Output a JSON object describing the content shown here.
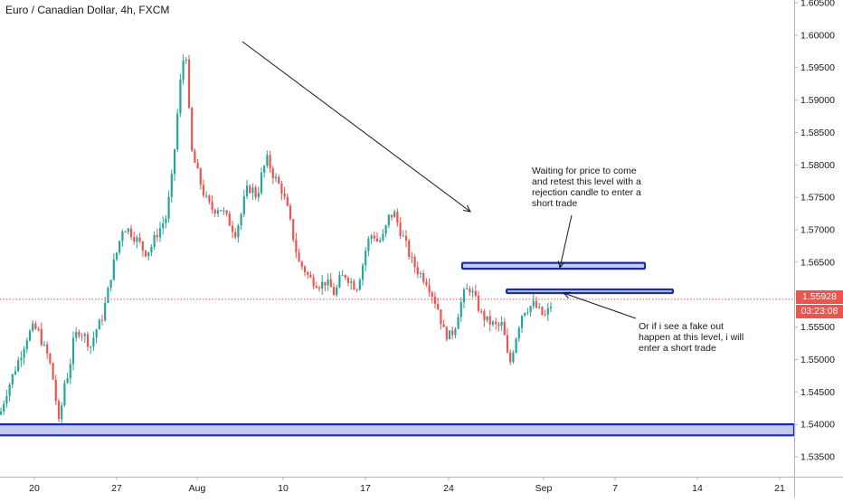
{
  "chart_data": {
    "type": "candlestick",
    "title": "Euro / Canadian Dollar, 4h, FXCM",
    "y_axis": {
      "side": "right",
      "ticks": [
        "1.60500",
        "1.60000",
        "1.59500",
        "1.59000",
        "1.58500",
        "1.58000",
        "1.57500",
        "1.57000",
        "1.56500",
        "1.56000",
        "1.55500",
        "1.55000",
        "1.54500",
        "1.54000",
        "1.53500"
      ],
      "range": [
        1.5325,
        1.6055
      ]
    },
    "x_axis": {
      "ticks": [
        "20",
        "27",
        "Aug",
        "10",
        "17",
        "24",
        "Sep",
        "7",
        "14",
        "21"
      ]
    },
    "grid": false,
    "price_path": [
      [
        0,
        1.5415
      ],
      [
        6,
        1.5445
      ],
      [
        12,
        1.5468
      ],
      [
        18,
        1.549
      ],
      [
        24,
        1.5512
      ],
      [
        30,
        1.5535
      ],
      [
        36,
        1.5548
      ],
      [
        42,
        1.5545
      ],
      [
        48,
        1.552
      ],
      [
        54,
        1.5502
      ],
      [
        60,
        1.546
      ],
      [
        64,
        1.541
      ],
      [
        66,
        1.5392
      ],
      [
        70,
        1.546
      ],
      [
        76,
        1.548
      ],
      [
        82,
        1.5535
      ],
      [
        88,
        1.5545
      ],
      [
        94,
        1.5535
      ],
      [
        100,
        1.552
      ],
      [
        106,
        1.5545
      ],
      [
        112,
        1.556
      ],
      [
        118,
        1.5595
      ],
      [
        124,
        1.564
      ],
      [
        130,
        1.567
      ],
      [
        136,
        1.5705
      ],
      [
        142,
        1.57
      ],
      [
        148,
        1.569
      ],
      [
        154,
        1.568
      ],
      [
        160,
        1.5665
      ],
      [
        166,
        1.567
      ],
      [
        172,
        1.569
      ],
      [
        178,
        1.5705
      ],
      [
        184,
        1.572
      ],
      [
        190,
        1.578
      ],
      [
        194,
        1.584
      ],
      [
        198,
        1.591
      ],
      [
        202,
        1.596
      ],
      [
        206,
        1.597
      ],
      [
        208,
        1.59
      ],
      [
        212,
        1.582
      ],
      [
        218,
        1.579
      ],
      [
        224,
        1.576
      ],
      [
        230,
        1.574
      ],
      [
        236,
        1.573
      ],
      [
        242,
        1.5735
      ],
      [
        248,
        1.5725
      ],
      [
        254,
        1.571
      ],
      [
        260,
        1.5695
      ],
      [
        266,
        1.572
      ],
      [
        272,
        1.576
      ],
      [
        278,
        1.5765
      ],
      [
        284,
        1.575
      ],
      [
        290,
        1.579
      ],
      [
        296,
        1.581
      ],
      [
        300,
        1.579
      ],
      [
        306,
        1.5775
      ],
      [
        312,
        1.576
      ],
      [
        318,
        1.573
      ],
      [
        324,
        1.569
      ],
      [
        330,
        1.565
      ],
      [
        336,
        1.564
      ],
      [
        342,
        1.5625
      ],
      [
        348,
        1.562
      ],
      [
        354,
        1.5615
      ],
      [
        360,
        1.562
      ],
      [
        366,
        1.561
      ],
      [
        370,
        1.56
      ],
      [
        376,
        1.5625
      ],
      [
        382,
        1.563
      ],
      [
        388,
        1.562
      ],
      [
        394,
        1.561
      ],
      [
        400,
        1.564
      ],
      [
        406,
        1.568
      ],
      [
        412,
        1.5695
      ],
      [
        418,
        1.568
      ],
      [
        424,
        1.569
      ],
      [
        430,
        1.572
      ],
      [
        436,
        1.5725
      ],
      [
        442,
        1.57
      ],
      [
        448,
        1.568
      ],
      [
        454,
        1.5655
      ],
      [
        460,
        1.564
      ],
      [
        466,
        1.563
      ],
      [
        472,
        1.562
      ],
      [
        478,
        1.56
      ],
      [
        484,
        1.558
      ],
      [
        490,
        1.5545
      ],
      [
        496,
        1.5535
      ],
      [
        502,
        1.5545
      ],
      [
        508,
        1.558
      ],
      [
        514,
        1.5605
      ],
      [
        520,
        1.561
      ],
      [
        526,
        1.559
      ],
      [
        532,
        1.557
      ],
      [
        538,
        1.556
      ],
      [
        544,
        1.5555
      ],
      [
        550,
        1.555
      ],
      [
        556,
        1.5555
      ],
      [
        560,
        1.551
      ],
      [
        564,
        1.5495
      ],
      [
        568,
        1.552
      ],
      [
        572,
        1.5545
      ],
      [
        578,
        1.5575
      ],
      [
        584,
        1.558
      ],
      [
        590,
        1.5585
      ],
      [
        596,
        1.5575
      ],
      [
        602,
        1.5565
      ],
      [
        608,
        1.558
      ],
      [
        612,
        1.5595
      ]
    ],
    "current_price": "1.55928",
    "countdown": "03:23:08",
    "colors": {
      "up": "#26a69a",
      "down": "#ef5350",
      "zone_fill": "#c5c9f0",
      "zone_stroke": "#1a2f9f",
      "price_line": "#ef5350"
    },
    "zones": [
      {
        "y_top": 1.5649,
        "y_bottom": 1.564,
        "x_start": "Aug 25",
        "x_end": "Sep 9"
      },
      {
        "y_top": 1.5608,
        "y_bottom": 1.5604,
        "x_start": "Aug 31",
        "x_end": "Sep 12"
      },
      {
        "y_top": 1.54,
        "y_bottom": 1.5383,
        "x_start": "Jul 20",
        "x_end": "Sep 21"
      }
    ],
    "annotations": [
      "Waiting for price to come\nand retest this level with a\nrejection candle to enter a\nshort trade",
      "Or if i see a fake out\nhappen at this level, i will\nenter a short trade"
    ]
  }
}
